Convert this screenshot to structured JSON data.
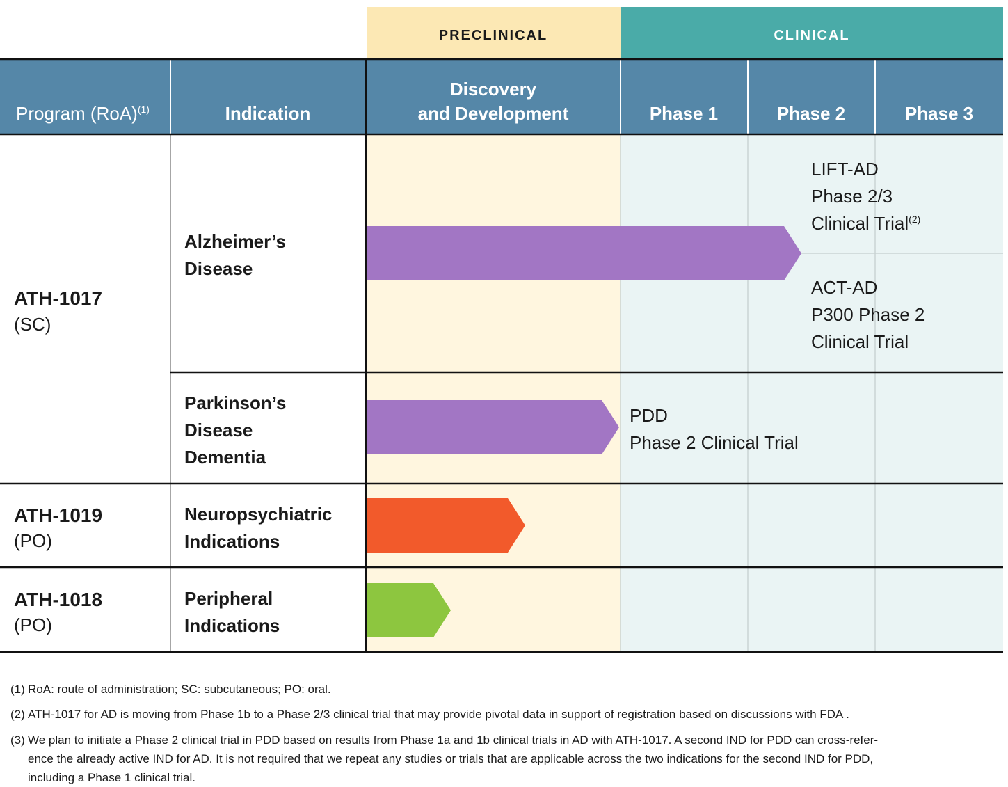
{
  "header": {
    "stages": {
      "preclinical": "PRECLINICAL",
      "clinical": "CLINICAL"
    },
    "columns": [
      {
        "label": "Program (RoA)",
        "note": "(1)"
      },
      {
        "label": "Indication"
      },
      {
        "lines": [
          "Discovery",
          "and Development"
        ]
      },
      {
        "label": "Phase 1"
      },
      {
        "label": "Phase 2"
      },
      {
        "label": "Phase 3"
      }
    ]
  },
  "programs": [
    {
      "name": "ATH-1017",
      "roa": "(SC)",
      "indications": [
        {
          "lines": [
            "Alzheimer’s",
            "Disease"
          ],
          "trials": [
            {
              "lines": [
                "LIFT-AD",
                "Phase 2/3",
                "Clinical Trial"
              ],
              "note": "(2)"
            },
            {
              "lines": [
                "ACT-AD",
                "P300 Phase 2",
                "Clinical Trial"
              ]
            }
          ]
        },
        {
          "lines": [
            "Parkinson’s",
            "Disease",
            "Dementia"
          ],
          "trials": [
            {
              "lines": [
                "PDD",
                "Phase 2 Clinical Trial"
              ]
            }
          ]
        }
      ]
    },
    {
      "name": "ATH-1019",
      "roa": "(PO)",
      "indications": [
        {
          "lines": [
            "Neuropsychiatric",
            "Indications"
          ]
        }
      ]
    },
    {
      "name": "ATH-1018",
      "roa": "(PO)",
      "indications": [
        {
          "lines": [
            "Peripheral",
            "Indications"
          ]
        }
      ]
    }
  ],
  "footnotes": [
    {
      "marker": "(1)",
      "lines": [
        "RoA: route of administration; SC: subcutaneous; PO: oral."
      ]
    },
    {
      "marker": "(2)",
      "lines": [
        "ATH-1017 for AD is moving from Phase 1b to a Phase 2/3 clinical trial that may provide pivotal data in support of registration based on discussions with FDA ."
      ]
    },
    {
      "marker": "(3)",
      "lines": [
        "We plan to initiate a Phase 2 clinical trial in PDD based on results from Phase 1a and 1b clinical trials in AD with ATH-1017. A second IND for PDD can cross-refer-",
        "ence the already active IND for AD. It is not required that we repeat any studies or trials that are applicable across the two indications for the second IND for PDD,",
        "including a Phase 1 clinical trial."
      ]
    }
  ]
}
